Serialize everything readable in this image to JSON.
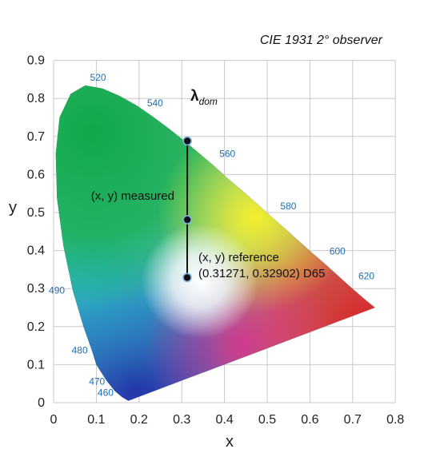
{
  "chart_data": {
    "type": "scatter",
    "title": "CIE 1931 2° observer",
    "xlabel": "x",
    "ylabel": "y",
    "xlim": [
      0,
      0.8
    ],
    "ylim": [
      0,
      0.9
    ],
    "grid": true,
    "x_ticks": [
      "0",
      "0.1",
      "0.2",
      "0.3",
      "0.4",
      "0.5",
      "0.6",
      "0.7",
      "0.8"
    ],
    "y_ticks": [
      "0",
      "0.1",
      "0.2",
      "0.3",
      "0.4",
      "0.5",
      "0.6",
      "0.7",
      "0.8",
      "0.9"
    ],
    "wavelength_labels": [
      {
        "text": "460",
        "x": 0.144,
        "y": 0.03
      },
      {
        "text": "470",
        "x": 0.124,
        "y": 0.058
      },
      {
        "text": "480",
        "x": 0.091,
        "y": 0.133
      },
      {
        "text": "490",
        "x": 0.045,
        "y": 0.295
      },
      {
        "text": "520",
        "x": 0.074,
        "y": 0.834
      },
      {
        "text": "540",
        "x": 0.23,
        "y": 0.754
      },
      {
        "text": "560",
        "x": 0.373,
        "y": 0.625
      },
      {
        "text": "580",
        "x": 0.512,
        "y": 0.487
      },
      {
        "text": "600",
        "x": 0.627,
        "y": 0.373
      },
      {
        "text": "620",
        "x": 0.691,
        "y": 0.308
      }
    ],
    "points": [
      {
        "name": "lambda_dom",
        "x": 0.313,
        "y": 0.688
      },
      {
        "name": "measured",
        "x": 0.313,
        "y": 0.481
      },
      {
        "name": "reference",
        "x": 0.3127,
        "y": 0.329
      }
    ]
  },
  "annotations": {
    "lambda": "λ",
    "lambda_sub": "dom",
    "measured": "(x, y) measured",
    "reference_line1": "(x, y) reference",
    "reference_line2": "(0.31271, 0.32902) D65"
  }
}
